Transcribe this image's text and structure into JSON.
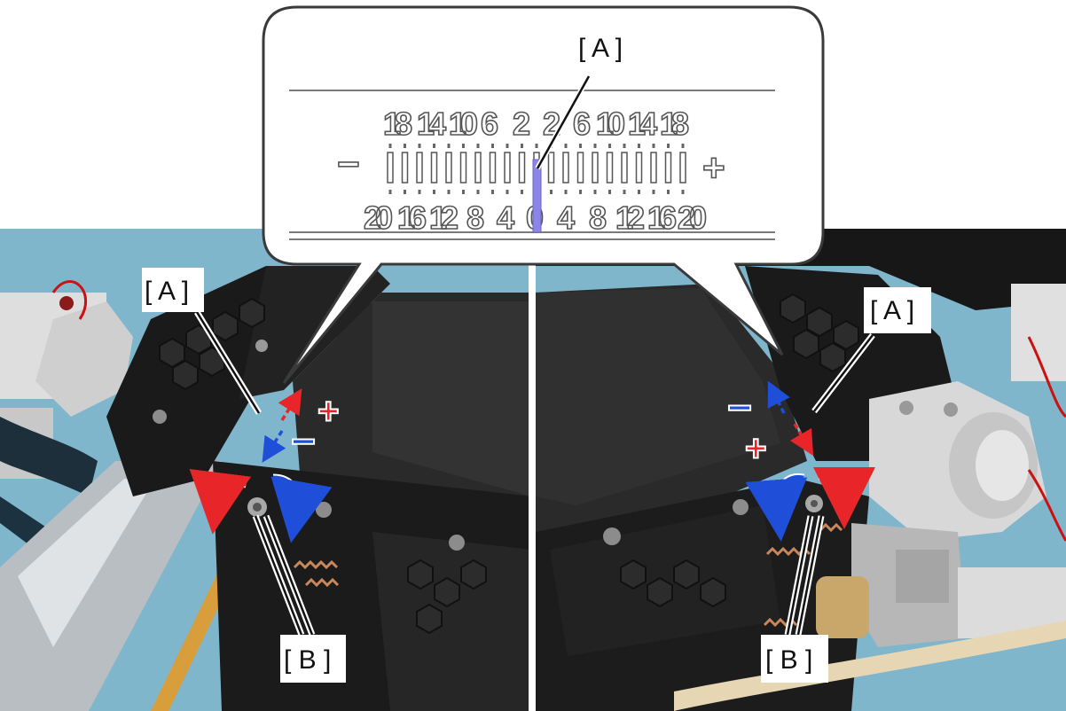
{
  "callout": {
    "label_a": "[ A ]",
    "top_numbers": [
      "18",
      "14",
      "10",
      "6",
      "2",
      "2",
      "6",
      "10",
      "14",
      "18"
    ],
    "bottom_numbers": [
      "20",
      "16",
      "12",
      "8",
      "4",
      "0",
      "4",
      "8",
      "12",
      "16",
      "20"
    ],
    "minus_sign": "−",
    "plus_sign": "+",
    "indicator_color": "#8a85e6"
  },
  "left_photo": {
    "label_a": "[ A ]",
    "label_b": "[ B ]",
    "plus_sign": "+",
    "minus_sign": "−",
    "plus_color": "#e8262a",
    "minus_color": "#1f4fd8"
  },
  "right_photo": {
    "label_a": "[ A ]",
    "label_b": "[ B ]",
    "plus_sign": "+",
    "minus_sign": "−",
    "plus_color": "#e8262a",
    "minus_color": "#1f4fd8"
  }
}
